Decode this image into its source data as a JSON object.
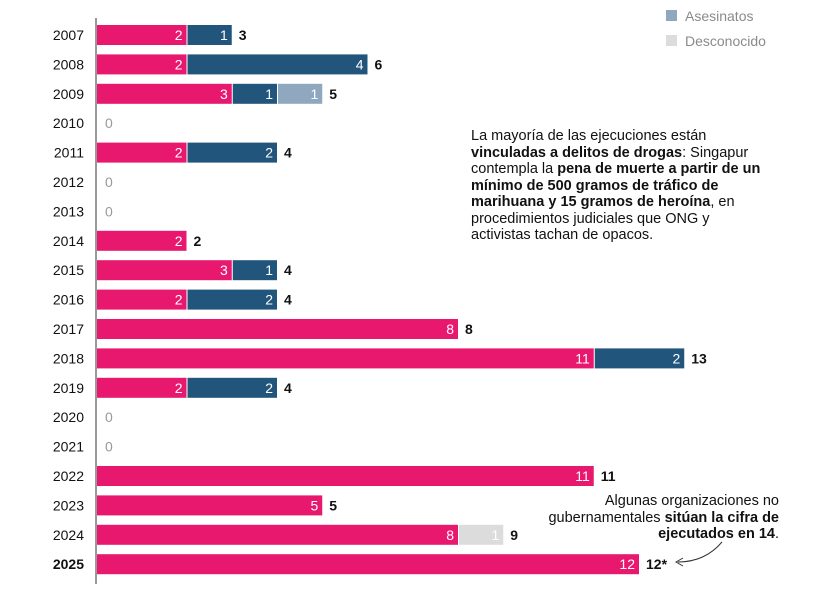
{
  "legend": [
    {
      "label": "Asesinatos",
      "color": "#8fa8bf"
    },
    {
      "label": "Desconocido",
      "color": "#dcdcdc"
    }
  ],
  "annotations": {
    "drugs": [
      {
        "text": "La mayoría de las ejecuciones están ",
        "bold": false
      },
      {
        "text": "vinculadas a delitos de drogas",
        "bold": true
      },
      {
        "text": ": Singapur contempla la ",
        "bold": false
      },
      {
        "text": "pena de muerte a partir de un mínimo de 500 gramos de tráfico de marihuana y 15 gramos de heroína",
        "bold": true
      },
      {
        "text": ", en procedimientos judiciales que ONG y activistas tachan de opacos.",
        "bold": false
      }
    ],
    "ngo": [
      {
        "text": "Algunas organizaciones no gubernamentales ",
        "bold": false
      },
      {
        "text": "sitúan la cifra de ejecutados en 14",
        "bold": true
      },
      {
        "text": ".",
        "bold": false
      }
    ]
  },
  "chart_data": {
    "type": "bar",
    "orientation": "horizontal",
    "stacked": true,
    "categories": [
      "2007",
      "2008",
      "2009",
      "2010",
      "2011",
      "2012",
      "2013",
      "2014",
      "2015",
      "2016",
      "2017",
      "2018",
      "2019",
      "2020",
      "2021",
      "2022",
      "2023",
      "2024",
      "2025"
    ],
    "series": [
      {
        "color": "#e8186e",
        "values": [
          2,
          2,
          3,
          0,
          2,
          0,
          0,
          2,
          3,
          2,
          8,
          11,
          2,
          0,
          0,
          11,
          5,
          8,
          12
        ]
      },
      {
        "color": "#22557c",
        "values": [
          1,
          4,
          1,
          0,
          2,
          0,
          0,
          0,
          1,
          2,
          0,
          2,
          2,
          0,
          0,
          0,
          0,
          0,
          0
        ]
      },
      {
        "name": "Asesinatos",
        "color": "#8fa8bf",
        "values": [
          0,
          0,
          1,
          0,
          0,
          0,
          0,
          0,
          0,
          0,
          0,
          0,
          0,
          0,
          0,
          0,
          0,
          0,
          0
        ]
      },
      {
        "name": "Desconocido",
        "color": "#dcdcdc",
        "values": [
          0,
          0,
          0,
          0,
          0,
          0,
          0,
          0,
          0,
          0,
          0,
          0,
          0,
          0,
          0,
          0,
          0,
          1,
          0
        ]
      }
    ],
    "totals": [
      "3",
      "6",
      "5",
      "0",
      "4",
      "0",
      "0",
      "2",
      "4",
      "4",
      "8",
      "13",
      "4",
      "0",
      "0",
      "11",
      "5",
      "9",
      "12*"
    ],
    "highlight_category": "2025",
    "xlim": [
      0,
      15
    ],
    "grid": false
  }
}
